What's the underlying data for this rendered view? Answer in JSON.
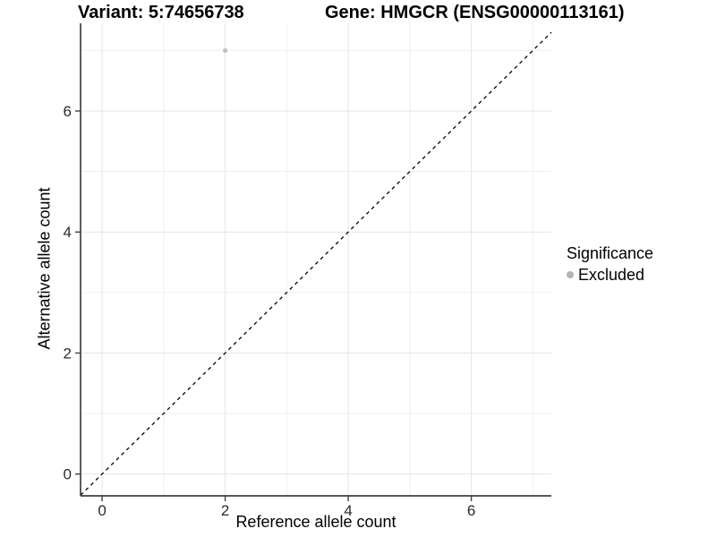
{
  "figure": {
    "title_left": "Variant: 5:74656738",
    "title_right": "Gene: HMGCR (ENSG00000113161)"
  },
  "chart_data": {
    "type": "scatter",
    "titles": [
      "Variant: 5:74656738",
      "Gene: HMGCR (ENSG00000113161)"
    ],
    "xlabel": "Reference allele count",
    "ylabel": "Alternative allele count",
    "xlim": [
      -0.35,
      7.3
    ],
    "ylim": [
      -0.36,
      7.45
    ],
    "x_ticks": [
      0,
      2,
      4,
      6
    ],
    "y_ticks": [
      0,
      2,
      4,
      6
    ],
    "x_minor_ticks": [
      1,
      3,
      5,
      7
    ],
    "y_minor_ticks": [
      1,
      3,
      5,
      7
    ],
    "grid": true,
    "identity_line": {
      "slope": 1,
      "intercept": 0,
      "style": "dashed",
      "color": "#000000"
    },
    "series": [
      {
        "name": "Excluded",
        "color": "#c0c0c0",
        "points": [
          {
            "x": 2,
            "y": 7
          }
        ]
      }
    ],
    "legend": {
      "title": "Significance",
      "position": "right",
      "items": [
        {
          "label": "Excluded",
          "color": "#b3b3b3"
        }
      ]
    },
    "colors": {
      "grid_major": "#e4e4e4",
      "grid_minor": "#efefef",
      "axis_line": "#3f3f3f",
      "tick_text": "#2b2b2b"
    }
  }
}
